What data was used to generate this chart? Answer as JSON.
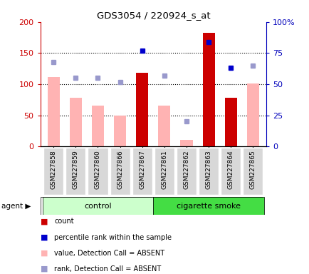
{
  "title": "GDS3054 / 220924_s_at",
  "samples": [
    "GSM227858",
    "GSM227859",
    "GSM227860",
    "GSM227866",
    "GSM227867",
    "GSM227861",
    "GSM227862",
    "GSM227863",
    "GSM227864",
    "GSM227865"
  ],
  "ylim_left": [
    0,
    200
  ],
  "ylim_right": [
    0,
    100
  ],
  "yticks_left": [
    0,
    50,
    100,
    150,
    200
  ],
  "ytick_labels_left": [
    "0",
    "50",
    "100",
    "150",
    "200"
  ],
  "yticks_right": [
    0,
    25,
    50,
    75,
    100
  ],
  "ytick_labels_right": [
    "0",
    "25",
    "50",
    "75",
    "100%"
  ],
  "bar_values": [
    null,
    null,
    null,
    null,
    118,
    null,
    null,
    183,
    78,
    null
  ],
  "bar_color": "#cc0000",
  "pink_bar_values": [
    112,
    78,
    66,
    50,
    null,
    66,
    11,
    null,
    null,
    101
  ],
  "pink_bar_color": "#ffb3b3",
  "blue_square_values_pct": [
    null,
    null,
    null,
    null,
    77,
    null,
    null,
    84,
    63,
    null
  ],
  "blue_square_color": "#0000cc",
  "light_blue_square_values_pct": [
    68,
    55,
    55,
    52,
    null,
    57,
    20,
    null,
    null,
    65
  ],
  "light_blue_square_color": "#9999cc",
  "right_axis_color": "#0000bb",
  "left_axis_color": "#cc0000",
  "dotted_line_color": "#000000",
  "ctrl_color": "#ccffcc",
  "smoke_color": "#44dd44",
  "legend_items": [
    {
      "color": "#cc0000",
      "label": "count"
    },
    {
      "color": "#0000cc",
      "label": "percentile rank within the sample"
    },
    {
      "color": "#ffb3b3",
      "label": "value, Detection Call = ABSENT"
    },
    {
      "color": "#9999cc",
      "label": "rank, Detection Call = ABSENT"
    }
  ]
}
